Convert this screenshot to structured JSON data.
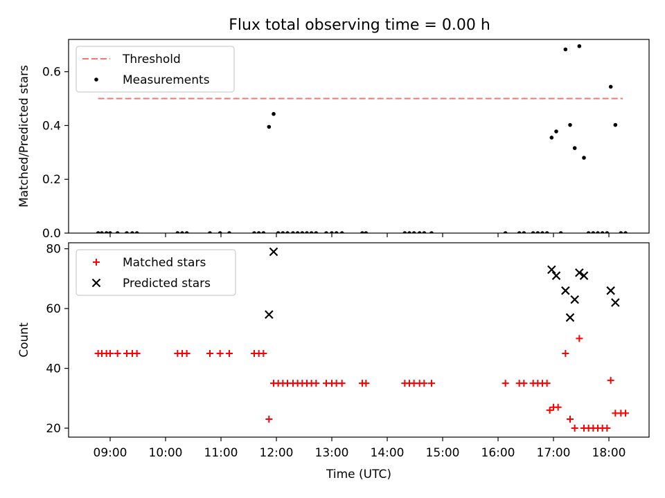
{
  "title": "Flux total observing time = 0.00 h",
  "chart_data": [
    {
      "type": "scatter",
      "ylabel": "Matched/Predicted stars",
      "xlabel": "",
      "ylim": [
        0,
        0.72
      ],
      "yticks": [
        0.0,
        0.2,
        0.4,
        0.6
      ],
      "ytick_labels": [
        "0.0",
        "0.2",
        "0.4",
        "0.6"
      ],
      "legend_position": "upper-left",
      "threshold": {
        "name": "Threshold",
        "value": 0.5,
        "x_range": [
          "08:47",
          "18:15"
        ],
        "color": "#ff7070"
      },
      "series": [
        {
          "name": "Measurements",
          "color": "#000000",
          "points": [
            [
              "08:47",
              0
            ],
            [
              "08:51",
              0
            ],
            [
              "08:56",
              0
            ],
            [
              "09:00",
              0
            ],
            [
              "09:08",
              0
            ],
            [
              "09:18",
              0
            ],
            [
              "09:24",
              0
            ],
            [
              "09:29",
              0
            ],
            [
              "10:13",
              0
            ],
            [
              "10:18",
              0
            ],
            [
              "10:23",
              0
            ],
            [
              "10:48",
              0
            ],
            [
              "10:59",
              0
            ],
            [
              "11:09",
              0
            ],
            [
              "11:36",
              0
            ],
            [
              "11:41",
              0
            ],
            [
              "11:46",
              0
            ],
            [
              "11:52",
              0.395
            ],
            [
              "11:57",
              0.443
            ],
            [
              "12:02",
              0
            ],
            [
              "12:07",
              0
            ],
            [
              "12:12",
              0
            ],
            [
              "12:18",
              0
            ],
            [
              "12:23",
              0
            ],
            [
              "12:28",
              0
            ],
            [
              "12:33",
              0
            ],
            [
              "12:38",
              0
            ],
            [
              "12:43",
              0
            ],
            [
              "12:54",
              0
            ],
            [
              "13:00",
              0
            ],
            [
              "13:05",
              0
            ],
            [
              "13:11",
              0
            ],
            [
              "13:33",
              0
            ],
            [
              "13:37",
              0
            ],
            [
              "14:19",
              0
            ],
            [
              "14:24",
              0
            ],
            [
              "14:29",
              0
            ],
            [
              "14:35",
              0
            ],
            [
              "14:40",
              0
            ],
            [
              "14:48",
              0
            ],
            [
              "16:08",
              0
            ],
            [
              "16:23",
              0
            ],
            [
              "16:28",
              0
            ],
            [
              "16:38",
              0
            ],
            [
              "16:43",
              0
            ],
            [
              "16:48",
              0
            ],
            [
              "16:53",
              0
            ],
            [
              "16:58",
              0.355
            ],
            [
              "17:03",
              0.378
            ],
            [
              "17:08",
              0
            ],
            [
              "17:13",
              0.683
            ],
            [
              "17:18",
              0.402
            ],
            [
              "17:23",
              0.316
            ],
            [
              "17:28",
              0.695
            ],
            [
              "17:33",
              0.28
            ],
            [
              "17:38",
              0
            ],
            [
              "17:43",
              0
            ],
            [
              "17:48",
              0
            ],
            [
              "17:53",
              0
            ],
            [
              "17:58",
              0
            ],
            [
              "18:02",
              0.544
            ],
            [
              "18:07",
              0.402
            ],
            [
              "18:13",
              0
            ],
            [
              "18:18",
              0
            ]
          ]
        }
      ]
    },
    {
      "type": "scatter",
      "ylabel": "Count",
      "xlabel": "Time (UTC)",
      "ylim": [
        17,
        82
      ],
      "yticks": [
        20,
        40,
        60,
        80
      ],
      "ytick_labels": [
        "20",
        "40",
        "60",
        "80"
      ],
      "x_tick_labels": [
        "09:00",
        "10:00",
        "11:00",
        "12:00",
        "13:00",
        "14:00",
        "15:00",
        "16:00",
        "17:00",
        "18:00"
      ],
      "xlim": [
        "08:24",
        "18:52"
      ],
      "legend_position": "upper-left",
      "series": [
        {
          "name": "Matched stars",
          "marker": "plus",
          "color": "#ff0000",
          "points": [
            [
              "08:47",
              45
            ],
            [
              "08:51",
              45
            ],
            [
              "08:56",
              45
            ],
            [
              "09:00",
              45
            ],
            [
              "09:08",
              45
            ],
            [
              "09:18",
              45
            ],
            [
              "09:24",
              45
            ],
            [
              "09:29",
              45
            ],
            [
              "10:13",
              45
            ],
            [
              "10:18",
              45
            ],
            [
              "10:23",
              45
            ],
            [
              "10:48",
              45
            ],
            [
              "10:59",
              45
            ],
            [
              "11:09",
              45
            ],
            [
              "11:36",
              45
            ],
            [
              "11:41",
              45
            ],
            [
              "11:46",
              45
            ],
            [
              "11:52",
              23
            ],
            [
              "11:57",
              35
            ],
            [
              "12:02",
              35
            ],
            [
              "12:07",
              35
            ],
            [
              "12:12",
              35
            ],
            [
              "12:18",
              35
            ],
            [
              "12:23",
              35
            ],
            [
              "12:28",
              35
            ],
            [
              "12:33",
              35
            ],
            [
              "12:38",
              35
            ],
            [
              "12:43",
              35
            ],
            [
              "12:54",
              35
            ],
            [
              "13:00",
              35
            ],
            [
              "13:05",
              35
            ],
            [
              "13:11",
              35
            ],
            [
              "13:33",
              35
            ],
            [
              "13:37",
              35
            ],
            [
              "14:19",
              35
            ],
            [
              "14:24",
              35
            ],
            [
              "14:29",
              35
            ],
            [
              "14:35",
              35
            ],
            [
              "14:40",
              35
            ],
            [
              "14:48",
              35
            ],
            [
              "16:08",
              35
            ],
            [
              "16:23",
              35
            ],
            [
              "16:28",
              35
            ],
            [
              "16:38",
              35
            ],
            [
              "16:43",
              35
            ],
            [
              "16:48",
              35
            ],
            [
              "16:53",
              35
            ],
            [
              "16:56",
              26
            ],
            [
              "17:00",
              27
            ],
            [
              "17:05",
              27
            ],
            [
              "17:13",
              45
            ],
            [
              "17:18",
              23
            ],
            [
              "17:23",
              20
            ],
            [
              "17:28",
              50
            ],
            [
              "17:33",
              20
            ],
            [
              "17:38",
              20
            ],
            [
              "17:43",
              20
            ],
            [
              "17:48",
              20
            ],
            [
              "17:53",
              20
            ],
            [
              "17:58",
              20
            ],
            [
              "18:02",
              36
            ],
            [
              "18:07",
              25
            ],
            [
              "18:13",
              25
            ],
            [
              "18:18",
              25
            ]
          ]
        },
        {
          "name": "Predicted stars",
          "marker": "x",
          "color": "#000000",
          "points": [
            [
              "11:52",
              58
            ],
            [
              "11:57",
              79
            ],
            [
              "16:58",
              73
            ],
            [
              "17:03",
              71
            ],
            [
              "17:13",
              66
            ],
            [
              "17:18",
              57
            ],
            [
              "17:23",
              63
            ],
            [
              "17:28",
              72
            ],
            [
              "17:33",
              71
            ],
            [
              "18:02",
              66
            ],
            [
              "18:07",
              62
            ]
          ]
        }
      ]
    }
  ]
}
